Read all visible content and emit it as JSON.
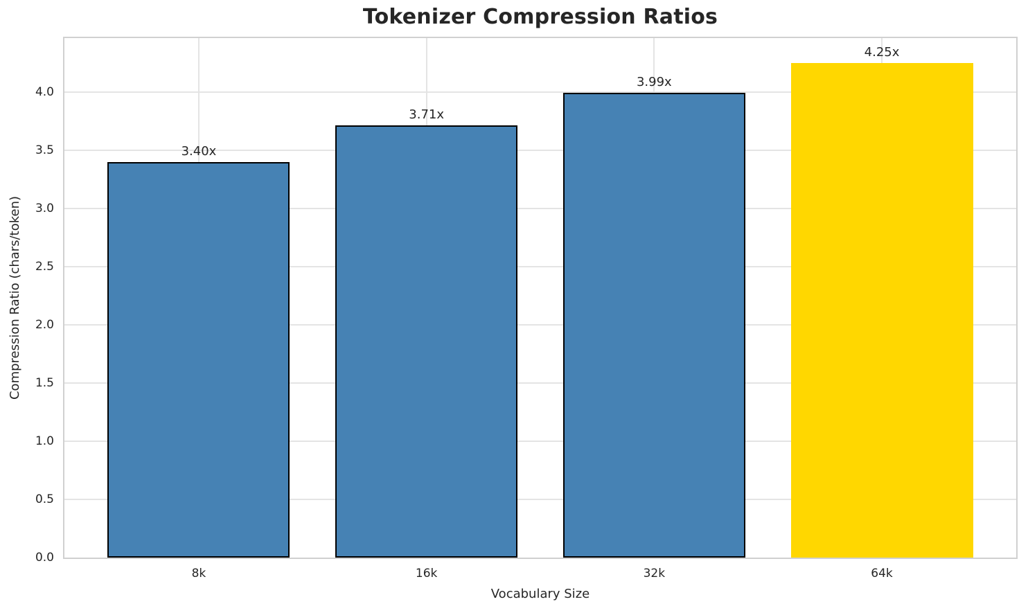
{
  "chart_data": {
    "type": "bar",
    "title": "Tokenizer Compression Ratios",
    "xlabel": "Vocabulary Size",
    "ylabel": "Compression Ratio (chars/token)",
    "categories": [
      "8k",
      "16k",
      "32k",
      "64k"
    ],
    "values": [
      3.4,
      3.71,
      3.99,
      4.25
    ],
    "bar_labels": [
      "3.40x",
      "3.71x",
      "3.99x",
      "4.25x"
    ],
    "bar_colors": [
      "#4682b4",
      "#4682b4",
      "#4682b4",
      "#ffd700"
    ],
    "bar_edge_colors": [
      "#000000",
      "#000000",
      "#000000",
      "none"
    ],
    "highlight_index": 3,
    "bar_width_fraction": 0.8,
    "xlim": [
      -0.59,
      3.59
    ],
    "ylim": [
      0,
      4.4625
    ],
    "yticks": [
      0.0,
      0.5,
      1.0,
      1.5,
      2.0,
      2.5,
      3.0,
      3.5,
      4.0
    ],
    "ytick_labels": [
      "0.0",
      "0.5",
      "1.0",
      "1.5",
      "2.0",
      "2.5",
      "3.0",
      "3.5",
      "4.0"
    ],
    "grid": true,
    "grid_axes": "both",
    "legend": "none",
    "colors": {
      "grid": "#e4e4e4",
      "spine": "#d0d0d0",
      "text": "#262626",
      "background": "#ffffff"
    }
  }
}
